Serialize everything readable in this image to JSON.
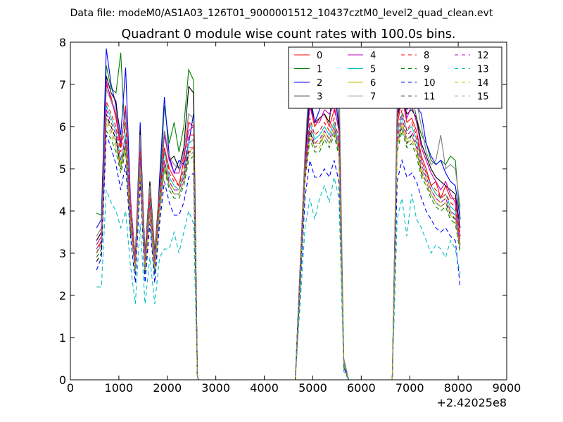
{
  "figure": {
    "suptitle": "Data file: modeM0/AS1A03_126T01_9000001512_10437cztM0_level2_quad_clean.evt",
    "title": "Quadrant 0 module wise count rates with 100.0s bins.",
    "x_offset_label": "+2.42025e8"
  },
  "chart_data": {
    "type": "line",
    "title": "Quadrant 0 module wise count rates with 100.0s bins.",
    "xlabel": "",
    "ylabel": "",
    "xlim": [
      0,
      9000
    ],
    "ylim": [
      0,
      8
    ],
    "x_offset": "+2.42025e8",
    "x_ticks": [
      0,
      1000,
      2000,
      3000,
      4000,
      5000,
      6000,
      7000,
      8000,
      9000
    ],
    "y_ticks": [
      0,
      1,
      2,
      3,
      4,
      5,
      6,
      7,
      8
    ],
    "x_tick_labels": [
      "0",
      "1000",
      "2000",
      "3000",
      "4000",
      "5000",
      "6000",
      "7000",
      "8000",
      "9000"
    ],
    "y_tick_labels": [
      "0",
      "1",
      "2",
      "3",
      "4",
      "5",
      "6",
      "7",
      "8"
    ],
    "grid": false,
    "legend": "top-right, 4 columns",
    "x": [
      540,
      640,
      740,
      840,
      940,
      1040,
      1140,
      1240,
      1340,
      1440,
      1540,
      1640,
      1740,
      1840,
      1940,
      2040,
      2140,
      2240,
      2340,
      2440,
      2540,
      2620,
      2640,
      2740,
      4640,
      4740,
      4840,
      4940,
      5040,
      5140,
      5240,
      5340,
      5440,
      5540,
      5640,
      5740,
      6640,
      6740,
      6840,
      6940,
      7040,
      7140,
      7240,
      7340,
      7440,
      7540,
      7640,
      7740,
      7840,
      7940,
      8040
    ],
    "series": [
      {
        "name": "0",
        "color": "#ff0000",
        "dash": "solid",
        "values": [
          3.3,
          3.5,
          7.0,
          6.7,
          6.2,
          5.5,
          6.5,
          4.2,
          2.9,
          5.6,
          2.9,
          4.5,
          2.8,
          4.4,
          5.5,
          5.0,
          4.8,
          4.6,
          5.2,
          6.1,
          6.0,
          0.1,
          0,
          0,
          0,
          2.5,
          5.2,
          6.5,
          6.0,
          6.2,
          6.3,
          6.0,
          6.4,
          6.0,
          0.5,
          0,
          0,
          6.0,
          6.7,
          6.1,
          6.2,
          5.9,
          5.3,
          5.0,
          4.6,
          4.7,
          4.3,
          4.6,
          4.3,
          4.3,
          3.4
        ]
      },
      {
        "name": "1",
        "color": "#008000",
        "dash": "solid",
        "values": [
          3.95,
          3.9,
          7.45,
          6.9,
          6.8,
          7.75,
          5.5,
          3.5,
          3.0,
          5.6,
          3.0,
          4.7,
          3.0,
          4.5,
          6.5,
          5.6,
          6.1,
          5.4,
          6.0,
          7.35,
          7.1,
          0.1,
          0,
          0,
          0,
          2.7,
          5.4,
          7.0,
          6.5,
          6.5,
          6.6,
          6.6,
          6.8,
          6.0,
          0.3,
          0,
          0,
          6.5,
          7.1,
          6.6,
          6.8,
          6.2,
          5.8,
          5.6,
          5.2,
          5.1,
          5.2,
          5.1,
          5.3,
          5.2,
          3.8
        ]
      },
      {
        "name": "2",
        "color": "#0000ff",
        "dash": "solid",
        "values": [
          3.6,
          3.8,
          7.85,
          7.0,
          6.5,
          5.8,
          7.4,
          4.3,
          2.8,
          6.1,
          2.8,
          4.2,
          2.5,
          4.8,
          6.7,
          5.3,
          4.9,
          5.2,
          5.1,
          5.6,
          6.3,
          0.1,
          0,
          0,
          0,
          2.6,
          5.3,
          6.8,
          6.1,
          6.4,
          6.8,
          6.5,
          6.9,
          6.0,
          0.4,
          0,
          0,
          6.3,
          6.9,
          6.4,
          6.6,
          6.5,
          6.3,
          5.6,
          5.3,
          5.1,
          5.2,
          4.9,
          4.7,
          4.6,
          3.8
        ]
      },
      {
        "name": "3",
        "color": "#000000",
        "dash": "solid",
        "values": [
          3.3,
          3.5,
          7.2,
          6.8,
          6.6,
          5.6,
          6.4,
          4.2,
          2.8,
          5.9,
          2.9,
          4.7,
          3.0,
          4.6,
          5.9,
          5.2,
          5.3,
          5.0,
          5.5,
          6.95,
          6.8,
          0.1,
          0,
          0,
          0,
          2.6,
          5.3,
          6.6,
          6.1,
          6.2,
          6.3,
          6.1,
          7.2,
          6.2,
          0.4,
          0,
          0,
          6.2,
          6.7,
          6.3,
          6.4,
          6.2,
          5.6,
          5.3,
          5.0,
          4.8,
          4.7,
          4.6,
          4.5,
          4.4,
          3.6
        ]
      },
      {
        "name": "4",
        "color": "#bf00bf",
        "dash": "solid",
        "values": [
          3.2,
          3.4,
          7.1,
          6.6,
          6.3,
          5.6,
          6.4,
          4.3,
          2.8,
          5.7,
          2.9,
          4.6,
          2.9,
          4.4,
          5.8,
          5.2,
          4.9,
          4.9,
          5.3,
          5.9,
          6.0,
          0.1,
          0,
          0,
          0,
          2.5,
          5.1,
          6.5,
          6.1,
          6.1,
          6.4,
          6.3,
          6.5,
          5.9,
          0.4,
          0,
          0,
          6.3,
          6.7,
          6.2,
          6.5,
          6.1,
          5.5,
          5.2,
          4.9,
          4.7,
          4.5,
          4.7,
          4.4,
          4.2,
          3.4
        ]
      },
      {
        "name": "5",
        "color": "#00bfbf",
        "dash": "solid",
        "values": [
          3.0,
          3.2,
          6.5,
          6.2,
          5.9,
          5.2,
          5.8,
          3.8,
          2.6,
          5.3,
          2.6,
          4.2,
          2.6,
          4.2,
          5.4,
          4.8,
          4.6,
          4.5,
          4.9,
          5.6,
          5.7,
          0.1,
          0,
          0,
          0,
          2.4,
          5.0,
          6.1,
          5.7,
          5.8,
          6.0,
          5.8,
          6.1,
          5.6,
          0.4,
          0,
          0,
          5.8,
          6.3,
          5.9,
          6.0,
          5.7,
          5.2,
          4.9,
          4.6,
          4.4,
          4.3,
          4.4,
          4.1,
          4.0,
          3.2
        ]
      },
      {
        "name": "6",
        "color": "#bfbf00",
        "dash": "solid",
        "values": [
          3.1,
          3.3,
          6.2,
          6.0,
          5.7,
          5.1,
          5.6,
          3.9,
          2.7,
          5.1,
          2.7,
          4.1,
          2.7,
          4.1,
          5.2,
          4.7,
          4.5,
          4.5,
          4.8,
          5.4,
          5.5,
          0.1,
          0,
          0,
          0,
          2.4,
          4.9,
          5.9,
          5.6,
          5.6,
          5.9,
          5.7,
          6.0,
          5.5,
          0.4,
          0,
          0,
          5.6,
          6.1,
          5.7,
          5.8,
          5.5,
          5.0,
          4.8,
          4.5,
          4.3,
          4.2,
          4.3,
          4.0,
          3.9,
          3.2
        ]
      },
      {
        "name": "7",
        "color": "#808080",
        "dash": "solid",
        "values": [
          3.4,
          3.6,
          6.9,
          6.6,
          6.4,
          5.7,
          6.3,
          4.1,
          2.8,
          5.8,
          2.8,
          4.6,
          2.9,
          4.5,
          5.9,
          5.3,
          5.1,
          5.0,
          5.4,
          6.3,
          6.2,
          0.1,
          0,
          0,
          0,
          2.6,
          5.4,
          7.4,
          6.6,
          6.7,
          7.7,
          7.1,
          7.2,
          7.4,
          0.5,
          0,
          0,
          6.6,
          7.4,
          7.0,
          7.5,
          6.6,
          6.0,
          5.4,
          5.1,
          5.2,
          5.8,
          5.0,
          5.1,
          5.0,
          4.1
        ]
      },
      {
        "name": "8",
        "color": "#ff0000",
        "dash": "dashed",
        "values": [
          3.0,
          3.3,
          6.6,
          6.3,
          6.0,
          5.4,
          6.1,
          4.0,
          2.7,
          5.4,
          2.7,
          4.3,
          2.7,
          4.3,
          5.5,
          4.9,
          4.7,
          4.6,
          5.0,
          5.8,
          5.8,
          0.1,
          0,
          0,
          0,
          2.4,
          5.0,
          6.2,
          5.8,
          5.9,
          6.1,
          5.9,
          6.2,
          5.7,
          0.4,
          0,
          0,
          5.9,
          6.4,
          5.9,
          6.1,
          5.8,
          5.2,
          4.9,
          4.6,
          4.5,
          4.3,
          4.4,
          4.2,
          4.1,
          3.3
        ]
      },
      {
        "name": "9",
        "color": "#008000",
        "dash": "dashed",
        "values": [
          2.9,
          3.1,
          5.9,
          5.7,
          5.4,
          4.9,
          5.4,
          3.7,
          2.5,
          4.9,
          2.5,
          3.9,
          2.5,
          3.9,
          5.0,
          4.5,
          4.3,
          4.3,
          4.6,
          5.2,
          5.3,
          0.1,
          0,
          0,
          0,
          2.3,
          4.7,
          5.7,
          5.4,
          5.4,
          5.7,
          5.5,
          5.8,
          5.3,
          0.4,
          0,
          0,
          5.4,
          5.9,
          5.5,
          5.6,
          5.3,
          4.8,
          4.6,
          4.3,
          4.1,
          4.0,
          4.1,
          3.8,
          3.7,
          3.0
        ]
      },
      {
        "name": "10",
        "color": "#0000ff",
        "dash": "dashed",
        "values": [
          2.6,
          2.9,
          5.8,
          5.5,
          5.1,
          4.5,
          5.1,
          3.4,
          2.3,
          4.7,
          2.3,
          3.7,
          2.3,
          3.7,
          4.7,
          4.2,
          3.9,
          3.9,
          4.2,
          4.8,
          4.9,
          0.1,
          0,
          0,
          0,
          2.1,
          4.3,
          5.2,
          4.8,
          4.8,
          5.0,
          4.8,
          5.2,
          4.7,
          0.3,
          0,
          0,
          4.7,
          5.2,
          4.8,
          4.9,
          4.7,
          4.3,
          4.0,
          3.8,
          3.6,
          3.5,
          3.6,
          3.4,
          3.3,
          2.2
        ]
      },
      {
        "name": "11",
        "color": "#000000",
        "dash": "dashed",
        "values": [
          2.8,
          3.0,
          6.3,
          6.0,
          5.7,
          5.0,
          5.6,
          3.7,
          2.6,
          5.1,
          2.6,
          4.0,
          2.6,
          4.0,
          5.1,
          4.6,
          4.4,
          4.4,
          4.7,
          5.4,
          5.4,
          0.1,
          0,
          0,
          0,
          2.3,
          4.8,
          5.9,
          5.5,
          5.6,
          5.8,
          5.6,
          5.9,
          5.4,
          0.4,
          0,
          0,
          5.6,
          6.0,
          5.6,
          5.8,
          5.5,
          4.9,
          4.7,
          4.4,
          4.2,
          4.1,
          4.2,
          3.9,
          3.8,
          3.1
        ]
      },
      {
        "name": "12",
        "color": "#bf00bf",
        "dash": "dashed",
        "values": [
          3.1,
          3.3,
          6.4,
          6.1,
          5.8,
          5.2,
          5.7,
          3.8,
          2.7,
          5.2,
          2.7,
          4.1,
          2.7,
          4.1,
          5.2,
          4.7,
          4.5,
          4.5,
          4.8,
          5.5,
          5.5,
          0.1,
          0,
          0,
          0,
          2.4,
          4.9,
          6.0,
          5.6,
          5.7,
          5.9,
          5.7,
          6.0,
          5.5,
          0.4,
          0,
          0,
          5.7,
          6.2,
          5.8,
          5.9,
          5.6,
          5.1,
          4.8,
          4.5,
          4.3,
          4.2,
          4.3,
          4.0,
          3.9,
          3.2
        ]
      },
      {
        "name": "13",
        "color": "#00bfbf",
        "dash": "dashed",
        "values": [
          2.2,
          2.2,
          4.5,
          4.2,
          4.0,
          3.6,
          4.0,
          2.7,
          1.8,
          3.7,
          1.8,
          2.9,
          1.8,
          2.9,
          3.1,
          3.1,
          3.5,
          3.0,
          3.5,
          4.0,
          3.7,
          0.1,
          0,
          0,
          0,
          1.8,
          3.6,
          4.3,
          3.8,
          4.3,
          4.6,
          4.2,
          4.8,
          4.3,
          0.2,
          0,
          0,
          3.8,
          4.3,
          3.4,
          4.4,
          3.8,
          3.6,
          3.3,
          3.0,
          3.2,
          3.1,
          2.9,
          3.3,
          3.1,
          2.5
        ]
      },
      {
        "name": "14",
        "color": "#bfbf00",
        "dash": "dashed",
        "values": [
          3.0,
          3.2,
          6.1,
          5.8,
          5.5,
          5.0,
          5.5,
          3.7,
          2.6,
          5.0,
          2.6,
          4.0,
          2.6,
          4.0,
          5.0,
          4.6,
          4.4,
          4.4,
          4.7,
          5.3,
          5.4,
          0.1,
          0,
          0,
          0,
          2.3,
          4.8,
          5.8,
          5.5,
          5.5,
          5.8,
          5.6,
          5.9,
          5.4,
          0.4,
          0,
          0,
          5.5,
          6.0,
          5.6,
          5.7,
          5.4,
          4.9,
          4.6,
          4.4,
          4.2,
          4.1,
          4.2,
          3.9,
          3.8,
          3.1
        ]
      },
      {
        "name": "15",
        "color": "#808080",
        "dash": "dashed",
        "values": [
          3.0,
          3.2,
          6.2,
          5.9,
          5.6,
          5.0,
          5.6,
          3.7,
          2.6,
          5.1,
          2.6,
          4.0,
          2.6,
          4.0,
          5.1,
          4.6,
          4.4,
          4.4,
          4.7,
          5.3,
          5.4,
          0.1,
          0,
          0,
          0,
          2.3,
          4.8,
          5.8,
          5.5,
          5.6,
          5.8,
          5.6,
          5.9,
          5.4,
          0.4,
          0,
          0,
          5.6,
          6.1,
          5.7,
          5.8,
          5.5,
          5.0,
          4.7,
          4.4,
          4.2,
          4.1,
          4.2,
          4.0,
          3.8,
          3.1
        ]
      }
    ]
  }
}
